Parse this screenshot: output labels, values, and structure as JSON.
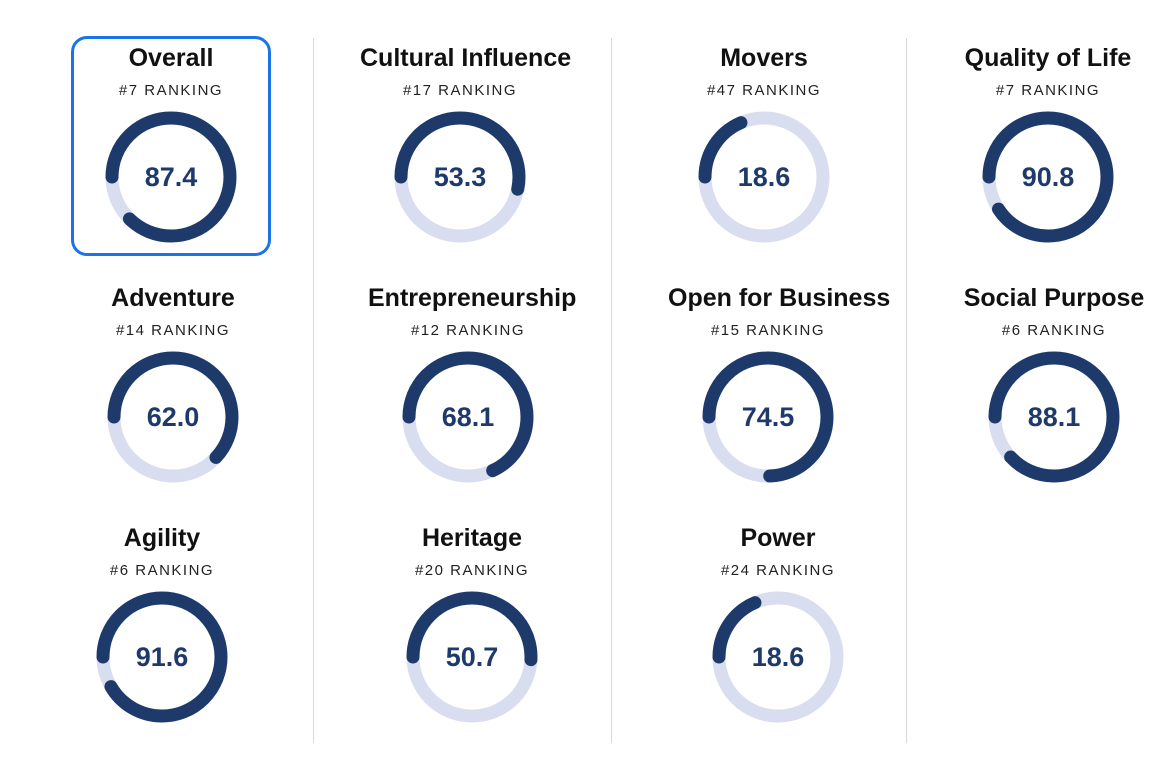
{
  "colors": {
    "track": "#d8ddef",
    "arc": "#1e3a6b",
    "selected_border": "#1a73e8"
  },
  "metrics": [
    {
      "title": "Overall",
      "rank": "#7 RANKING",
      "value": "87.4",
      "score": 87.4,
      "selected": true
    },
    {
      "title": "Cultural Influence",
      "rank": "#17 RANKING",
      "value": "53.3",
      "score": 53.3
    },
    {
      "title": "Movers",
      "rank": "#47 RANKING",
      "value": "18.6",
      "score": 18.6
    },
    {
      "title": "Quality of Life",
      "rank": "#7 RANKING",
      "value": "90.8",
      "score": 90.8
    },
    {
      "title": "Adventure",
      "rank": "#14 RANKING",
      "value": "62.0",
      "score": 62.0
    },
    {
      "title": "Entrepreneurship",
      "rank": "#12 RANKING",
      "value": "68.1",
      "score": 68.1
    },
    {
      "title": "Open for Business",
      "rank": "#15 RANKING",
      "value": "74.5",
      "score": 74.5
    },
    {
      "title": "Social Purpose",
      "rank": "#6 RANKING",
      "value": "88.1",
      "score": 88.1
    },
    {
      "title": "Agility",
      "rank": "#6 RANKING",
      "value": "91.6",
      "score": 91.6
    },
    {
      "title": "Heritage",
      "rank": "#20 RANKING",
      "value": "50.7",
      "score": 50.7
    },
    {
      "title": "Power",
      "rank": "#24 RANKING",
      "value": "18.6",
      "score": 18.6
    }
  ]
}
